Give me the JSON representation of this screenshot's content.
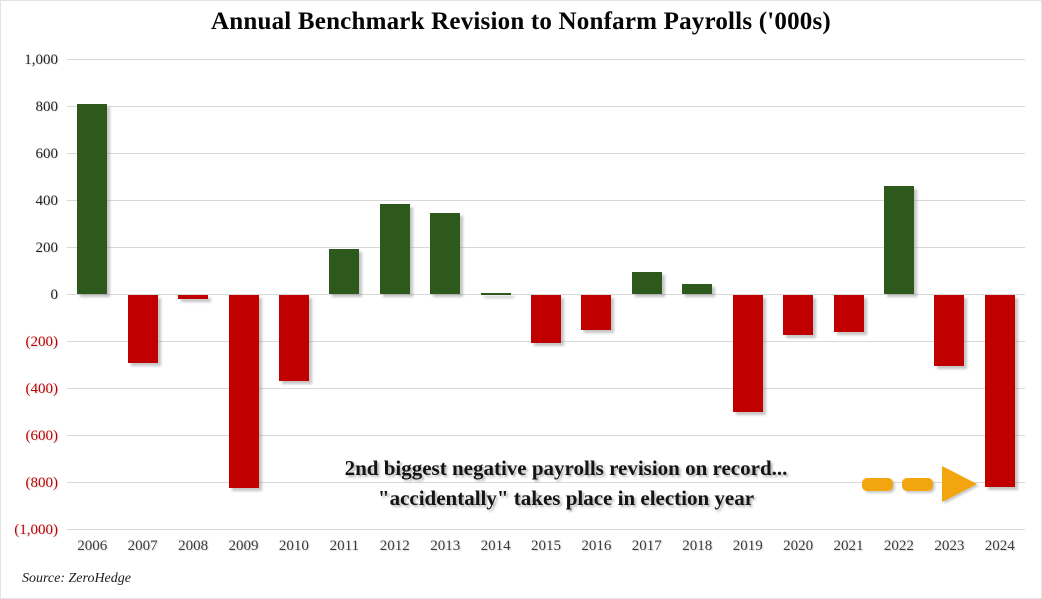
{
  "title": "Annual Benchmark Revision to Nonfarm Payrolls ('000s)",
  "source_credit": "Source: ZeroHedge",
  "annotation": {
    "line1": "2nd  biggest negative payrolls revision on record...",
    "line2": "\"accidentally\" takes place in election year"
  },
  "colors": {
    "positive_bar": "#2d5a1c",
    "negative_bar": "#c00000",
    "arrow": "#f2a50f",
    "gridline": "#d9d9d9",
    "axis_label": "#3b3b3b",
    "negative_axis_label": "#c00000"
  },
  "y_axis": {
    "ticks": [
      {
        "value": 1000,
        "label": "1,000",
        "negative": false
      },
      {
        "value": 800,
        "label": "800",
        "negative": false
      },
      {
        "value": 600,
        "label": "600",
        "negative": false
      },
      {
        "value": 400,
        "label": "400",
        "negative": false
      },
      {
        "value": 200,
        "label": "200",
        "negative": false
      },
      {
        "value": 0,
        "label": "0",
        "negative": false
      },
      {
        "value": -200,
        "label": "(200)",
        "negative": true
      },
      {
        "value": -400,
        "label": "(400)",
        "negative": true
      },
      {
        "value": -600,
        "label": "(600)",
        "negative": true
      },
      {
        "value": -800,
        "label": "(800)",
        "negative": true
      },
      {
        "value": -1000,
        "label": "(1,000)",
        "negative": true
      }
    ]
  },
  "chart_data": {
    "type": "bar",
    "title": "Annual Benchmark Revision to Nonfarm Payrolls ('000s)",
    "categories": [
      "2006",
      "2007",
      "2008",
      "2009",
      "2010",
      "2011",
      "2012",
      "2013",
      "2014",
      "2015",
      "2016",
      "2017",
      "2018",
      "2019",
      "2020",
      "2021",
      "2022",
      "2023",
      "2024"
    ],
    "values": [
      810,
      -293,
      -21,
      -824,
      -366,
      192,
      386,
      345,
      7,
      -208,
      -150,
      95,
      43,
      -501,
      -173,
      -161,
      462,
      -306,
      -818
    ],
    "xlabel": "",
    "ylabel": "",
    "ylim": [
      -1000,
      1000
    ],
    "grid": true,
    "legend": "none",
    "color_rule": "positive bars dark green, negative bars red"
  }
}
